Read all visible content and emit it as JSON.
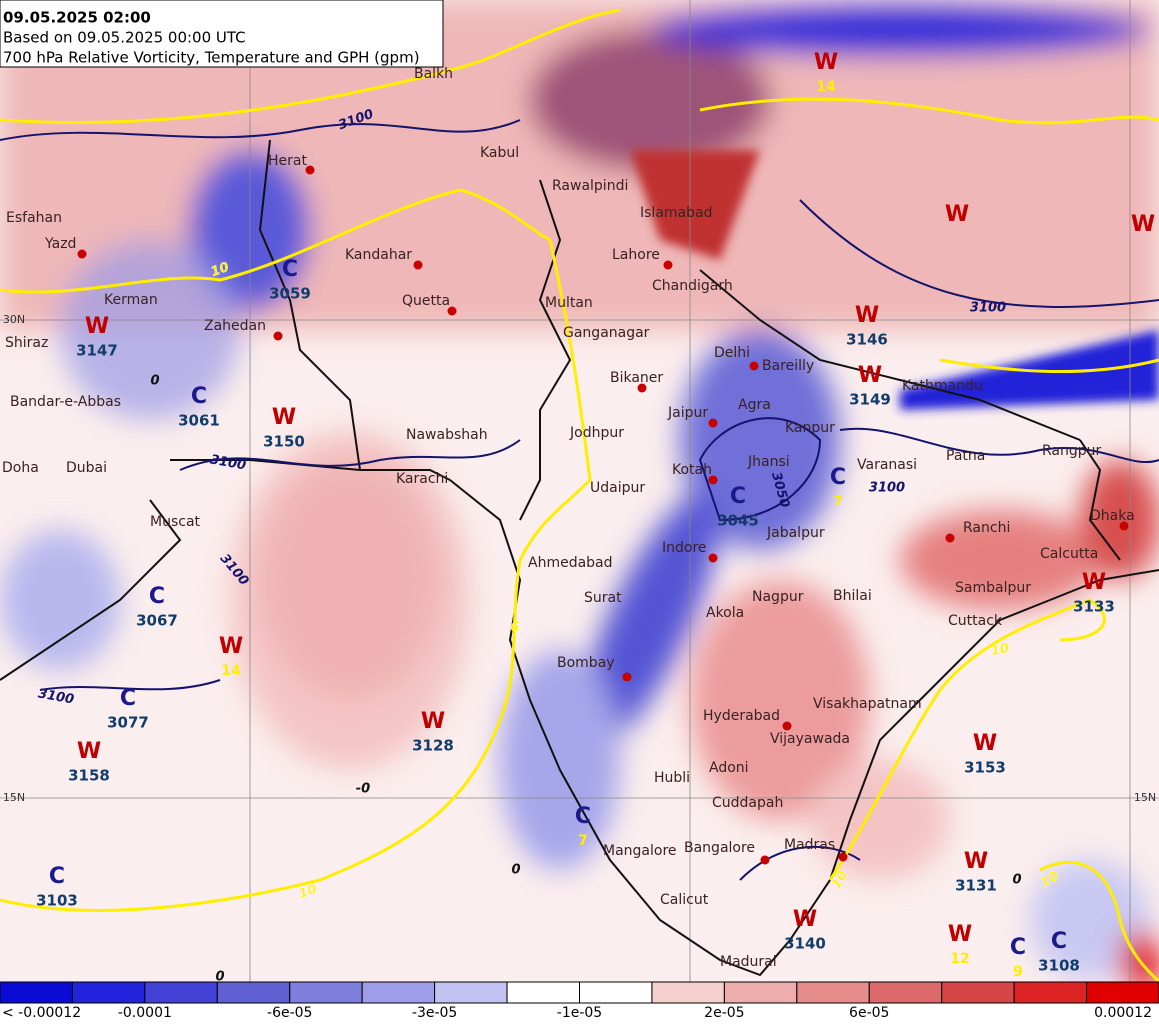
{
  "header": {
    "lines": [
      "09.05.2025 02:00",
      "Based on 09.05.2025 00:00 UTC",
      "700 hPa Relative Vorticity, Temperature and GPH (gpm)"
    ]
  },
  "cities": [
    "Balkh",
    "Herat",
    "Kabul",
    "Rawalpindi",
    "Islamabad",
    "Esfahan",
    "Yazd",
    "Kerman",
    "Kandahar",
    "Quetta",
    "Zahedan",
    "Shiraz",
    "Bandar-e-Abbas",
    "Doha",
    "Dubai",
    "Muscat",
    "Lahore",
    "Chandigarh",
    "Multan",
    "Ganganagar",
    "Delhi",
    "Bareilly",
    "Bikaner",
    "Jaipur",
    "Agra",
    "Kanpur",
    "Jodhpur",
    "Kotah",
    "Jhansi",
    "Udaipur",
    "Nawabshah",
    "Karachi",
    "Ahmedabad",
    "Surat",
    "Indore",
    "Jabalpur",
    "Varanasi",
    "Patna",
    "Rangpur",
    "Kathmandu",
    "Ranchi",
    "Dhaka",
    "Calcutta",
    "Sambalpur",
    "Cuttack",
    "Nagpur",
    "Bhilai",
    "Akola",
    "Bombay",
    "Hyderabad",
    "Visakhapatnam",
    "Vijayawada",
    "Adoni",
    "Hubli",
    "Cuddapah",
    "Mangalore",
    "Bangalore",
    "Madras",
    "Calicut",
    "Madurai"
  ],
  "systems": [
    {
      "kind": "W",
      "gph": 3147
    },
    {
      "kind": "C",
      "gph": 3059
    },
    {
      "kind": "C",
      "gph": 3061
    },
    {
      "kind": "W",
      "gph": 3150
    },
    {
      "kind": "C",
      "gph": 3067
    },
    {
      "kind": "W",
      "temp": 14
    },
    {
      "kind": "C",
      "gph": 3077
    },
    {
      "kind": "W",
      "gph": 3158
    },
    {
      "kind": "W",
      "gph": 3128
    },
    {
      "kind": "C",
      "temp": 7
    },
    {
      "kind": "C",
      "gph": 3103
    },
    {
      "kind": "C",
      "gph": 3045
    },
    {
      "kind": "W",
      "gph": 3146
    },
    {
      "kind": "W",
      "gph": 3149
    },
    {
      "kind": "C",
      "temp": 7
    },
    {
      "kind": "W",
      "gph": 3133
    },
    {
      "kind": "W",
      "gph": 3153
    },
    {
      "kind": "W",
      "gph": 3131
    },
    {
      "kind": "W",
      "temp": 12
    },
    {
      "kind": "C",
      "temp": 9
    },
    {
      "kind": "C",
      "gph": 3108
    },
    {
      "kind": "W",
      "gph": 3140
    },
    {
      "kind": "W",
      "temp": 14
    },
    {
      "kind": "W"
    },
    {
      "kind": "W"
    }
  ],
  "contour_labels": {
    "gph": [
      "3100",
      "3100",
      "3100",
      "3050",
      "3100",
      "3100",
      "3100"
    ],
    "temp": [
      "0",
      "-0",
      "0",
      "0",
      "0",
      "10",
      "10",
      "10",
      "10",
      "10",
      "6"
    ]
  },
  "latitude_labels": [
    "30N",
    "15N",
    "15N"
  ],
  "colorbar": {
    "colors": [
      "#0b0bd6",
      "#2323dc",
      "#4141d6",
      "#5f5fd2",
      "#7e7edc",
      "#9e9ee8",
      "#c2c2f2",
      "#ffffff",
      "#ffffff",
      "#f6cfcf",
      "#eeadad",
      "#e68c8c",
      "#dc6a6a",
      "#d64646",
      "#dc2424",
      "#e00000"
    ],
    "labels": [
      "< -0.00012",
      "-0.0001",
      "-6e-05",
      "-3e-05",
      "-1e-05",
      "2e-05",
      "6e-05",
      "0.00012"
    ]
  }
}
